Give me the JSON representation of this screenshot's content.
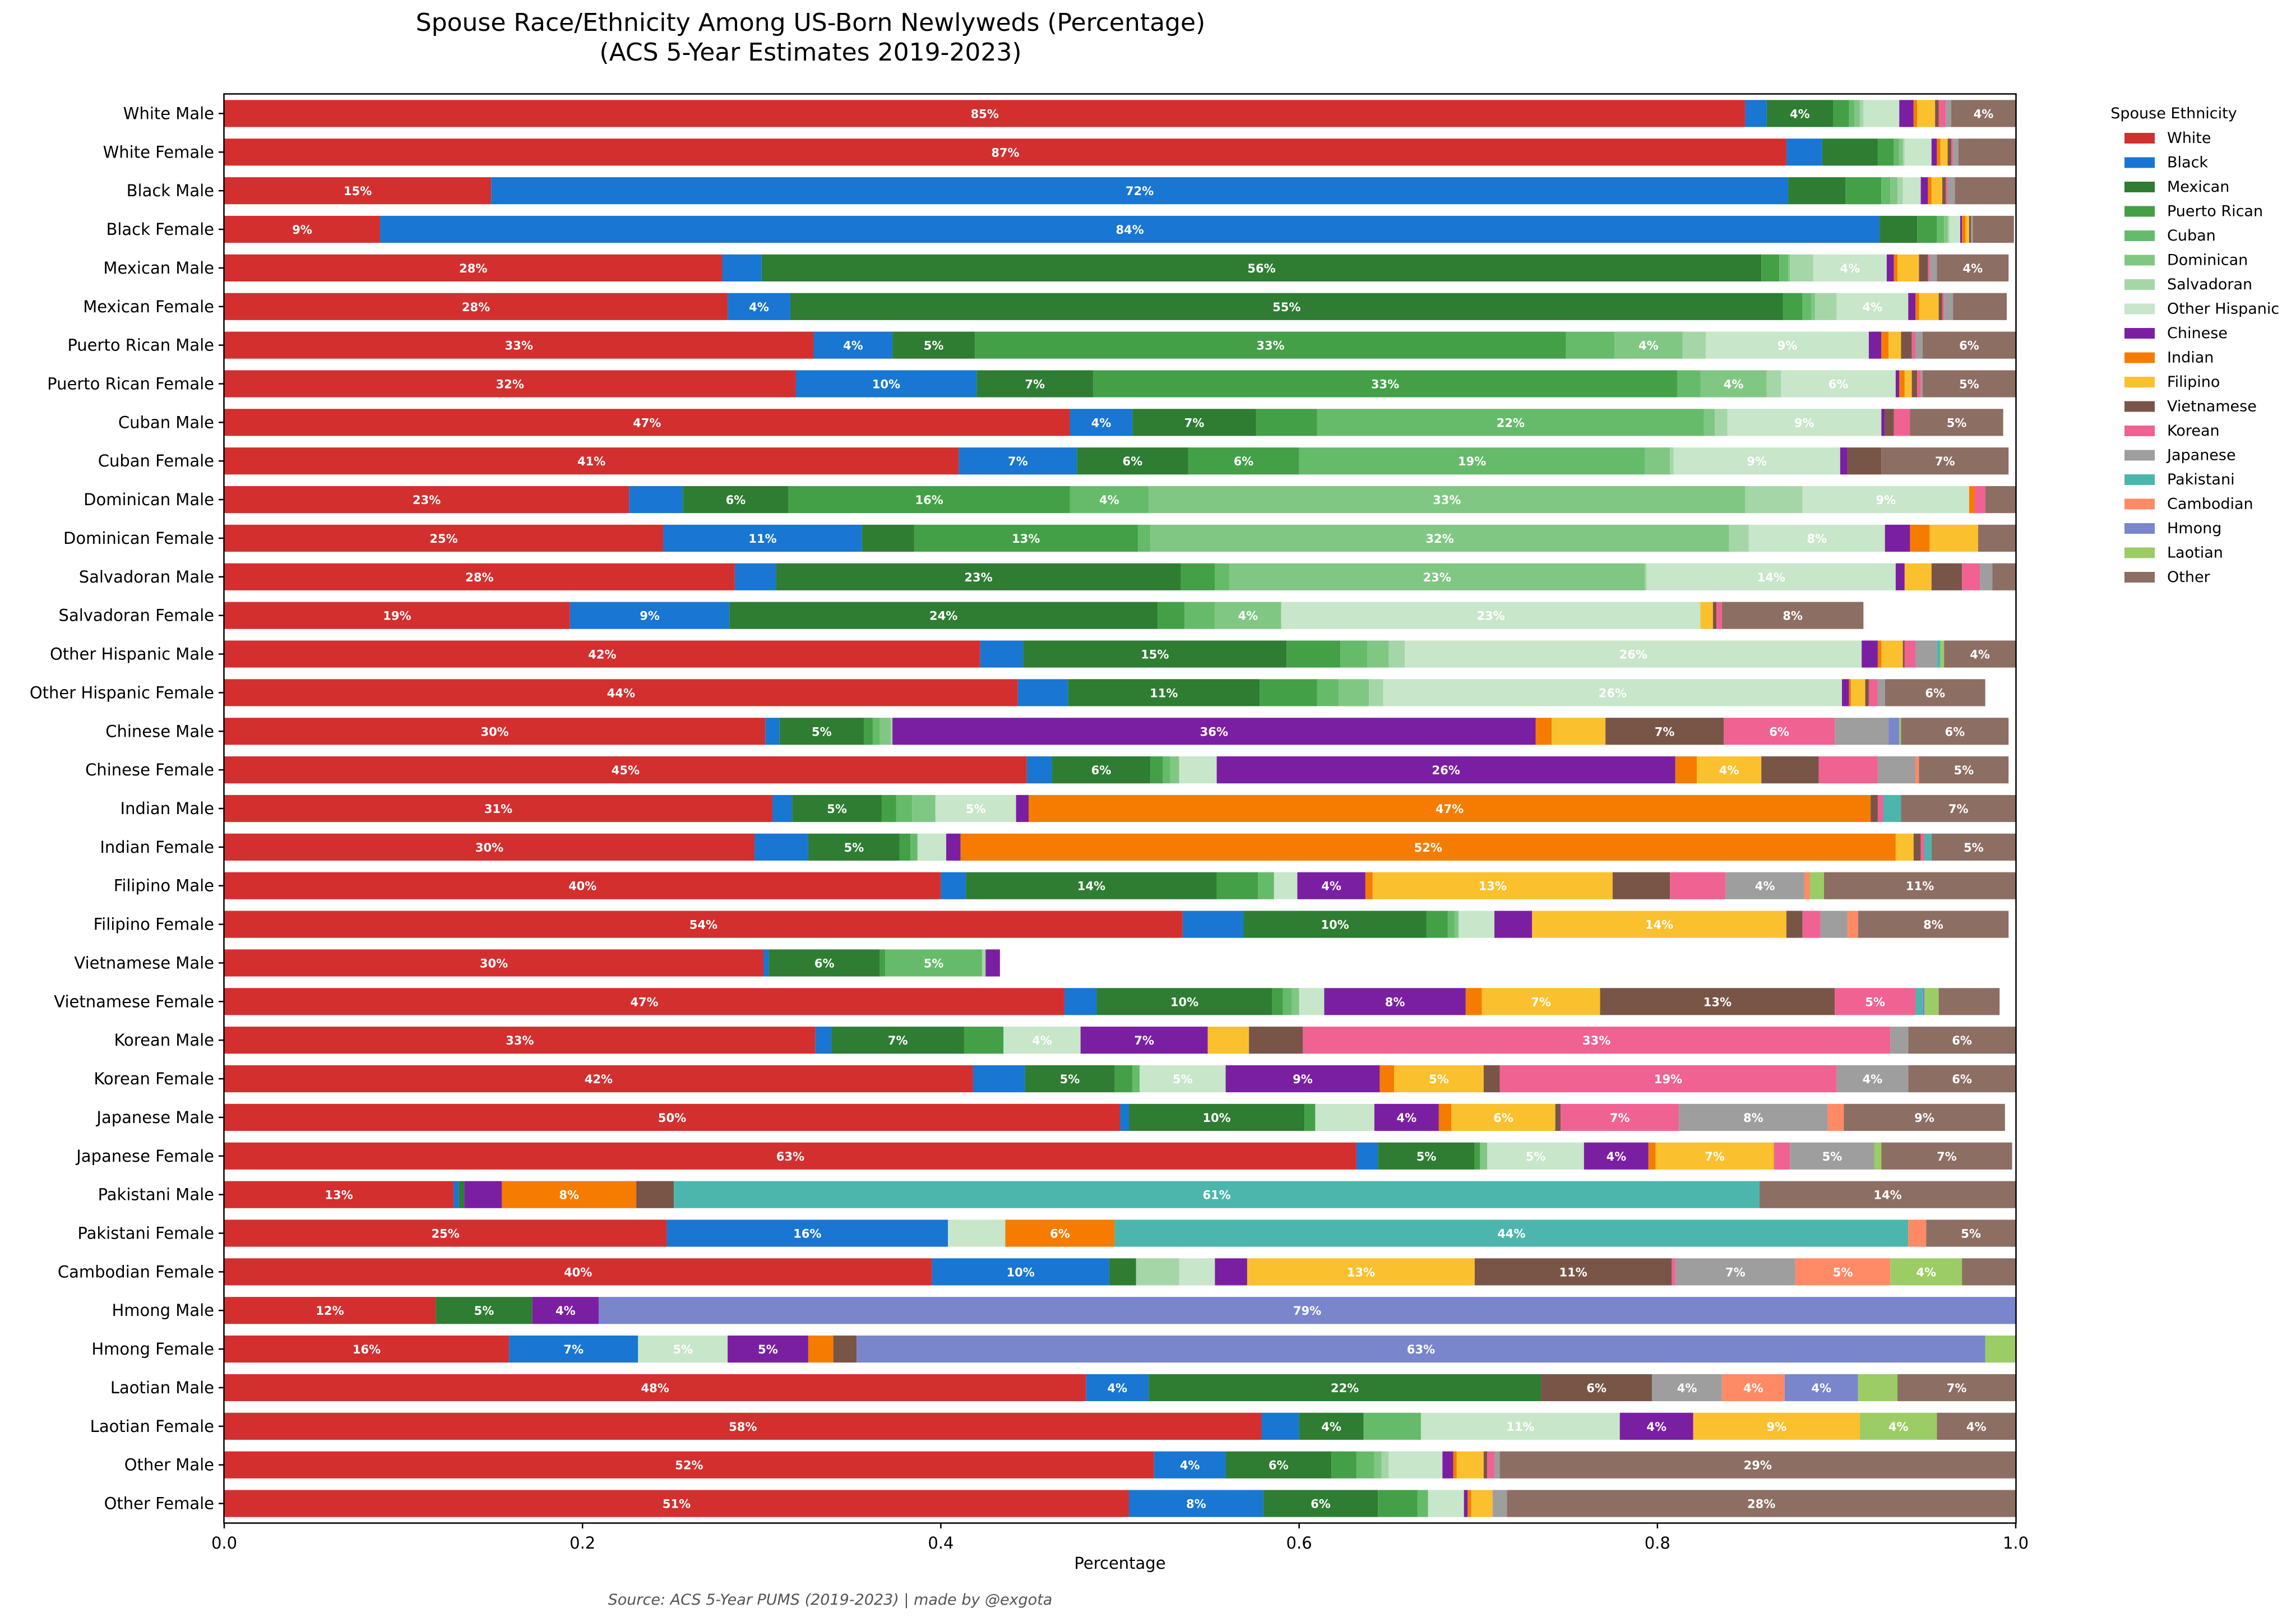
{
  "chart_data": {
    "type": "bar",
    "orientation": "horizontal",
    "stacked": true,
    "title": "Spouse Race/Ethnicity Among US-Born Newlyweds (Percentage)",
    "subtitle": "(ACS 5-Year Estimates 2019-2023)",
    "xlabel": "Percentage",
    "ylabel": "",
    "xlim": [
      0,
      1
    ],
    "xticks": [
      "0.0",
      "0.2",
      "0.4",
      "0.6",
      "0.8",
      "1.0"
    ],
    "xtick_values": [
      0,
      0.2,
      0.4,
      0.6,
      0.8,
      1.0
    ],
    "grid": false,
    "legend_title": "Spouse Ethnicity",
    "legend_position": "right",
    "label_threshold": 0.035,
    "source": "Source: ACS 5-Year PUMS (2019-2023) | made by @exgota",
    "series": [
      {
        "name": "White",
        "color": "#d32f2f"
      },
      {
        "name": "Black",
        "color": "#1976d2"
      },
      {
        "name": "Mexican",
        "color": "#2e7d32"
      },
      {
        "name": "Puerto Rican",
        "color": "#43a047"
      },
      {
        "name": "Cuban",
        "color": "#66bb6a"
      },
      {
        "name": "Dominican",
        "color": "#81c784"
      },
      {
        "name": "Salvadoran",
        "color": "#a5d6a7"
      },
      {
        "name": "Other Hispanic",
        "color": "#c8e6c9"
      },
      {
        "name": "Chinese",
        "color": "#7b1fa2"
      },
      {
        "name": "Indian",
        "color": "#f57c00"
      },
      {
        "name": "Filipino",
        "color": "#fbc02d"
      },
      {
        "name": "Vietnamese",
        "color": "#795548"
      },
      {
        "name": "Korean",
        "color": "#f06292"
      },
      {
        "name": "Japanese",
        "color": "#9e9e9e"
      },
      {
        "name": "Pakistani",
        "color": "#4db6ac"
      },
      {
        "name": "Cambodian",
        "color": "#ff8a65"
      },
      {
        "name": "Hmong",
        "color": "#7986cb"
      },
      {
        "name": "Laotian",
        "color": "#9ccc65"
      },
      {
        "name": "Other",
        "color": "#8d6e63"
      }
    ],
    "categories": [
      "White Male",
      "White Female",
      "Black Male",
      "Black Female",
      "Mexican Male",
      "Mexican Female",
      "Puerto Rican Male",
      "Puerto Rican Female",
      "Cuban Male",
      "Cuban Female",
      "Dominican Male",
      "Dominican Female",
      "Salvadoran Male",
      "Salvadoran Female",
      "Other Hispanic Male",
      "Other Hispanic Female",
      "Chinese Male",
      "Chinese Female",
      "Indian Male",
      "Indian Female",
      "Filipino Male",
      "Filipino Female",
      "Vietnamese Male",
      "Vietnamese Female",
      "Korean Male",
      "Korean Female",
      "Japanese Male",
      "Japanese Female",
      "Pakistani Male",
      "Pakistani Female",
      "Cambodian Female",
      "Hmong Male",
      "Hmong Female",
      "Laotian Male",
      "Laotian Female",
      "Other Male",
      "Other Female"
    ],
    "values": [
      [
        0.849,
        0.012,
        0.037,
        0.009,
        0.003,
        0.003,
        0.002,
        0.02,
        0.008,
        0.002,
        0.01,
        0.002,
        0.004,
        0.003,
        0.0,
        0.0,
        0.0,
        0.0,
        0.036
      ],
      [
        0.872,
        0.02,
        0.031,
        0.009,
        0.003,
        0.002,
        0.001,
        0.015,
        0.003,
        0.002,
        0.004,
        0.002,
        0.001,
        0.003,
        0.0,
        0.0,
        0.0,
        0.0,
        0.032
      ],
      [
        0.149,
        0.724,
        0.032,
        0.02,
        0.005,
        0.004,
        0.003,
        0.01,
        0.004,
        0.002,
        0.006,
        0.002,
        0.001,
        0.004,
        0.0,
        0.0,
        0.0,
        0.0,
        0.034
      ],
      [
        0.087,
        0.837,
        0.021,
        0.011,
        0.004,
        0.002,
        0.001,
        0.006,
        0.001,
        0.002,
        0.002,
        0.001,
        0.0,
        0.001,
        0.0,
        0.0,
        0.0,
        0.0,
        0.023
      ],
      [
        0.278,
        0.022,
        0.558,
        0.01,
        0.005,
        0.001,
        0.013,
        0.041,
        0.004,
        0.002,
        0.012,
        0.005,
        0.001,
        0.004,
        0.0,
        0.0,
        0.0,
        0.0,
        0.04
      ],
      [
        0.281,
        0.035,
        0.554,
        0.011,
        0.005,
        0.002,
        0.012,
        0.04,
        0.004,
        0.002,
        0.011,
        0.002,
        0.001,
        0.005,
        0.0,
        0.0,
        0.0,
        0.0,
        0.03
      ],
      [
        0.329,
        0.044,
        0.046,
        0.33,
        0.027,
        0.038,
        0.013,
        0.091,
        0.007,
        0.004,
        0.007,
        0.006,
        0.002,
        0.004,
        0.0,
        0.0,
        0.0,
        0.0,
        0.058
      ],
      [
        0.319,
        0.101,
        0.065,
        0.326,
        0.013,
        0.037,
        0.008,
        0.064,
        0.002,
        0.003,
        0.004,
        0.003,
        0.002,
        0.001,
        0.0,
        0.0,
        0.0,
        0.0,
        0.052
      ],
      [
        0.472,
        0.035,
        0.069,
        0.034,
        0.216,
        0.006,
        0.007,
        0.086,
        0.002,
        0.0,
        0.0,
        0.005,
        0.009,
        0.0,
        0.0,
        0.0,
        0.0,
        0.0,
        0.052
      ],
      [
        0.41,
        0.066,
        0.062,
        0.062,
        0.193,
        0.014,
        0.002,
        0.093,
        0.004,
        0.0,
        0.0,
        0.019,
        0.0,
        0.0,
        0.0,
        0.0,
        0.0,
        0.0,
        0.071
      ],
      [
        0.226,
        0.03,
        0.059,
        0.157,
        0.044,
        0.333,
        0.032,
        0.093,
        0.0,
        0.003,
        0.0,
        0.0,
        0.006,
        0.0,
        0.0,
        0.0,
        0.0,
        0.0,
        0.017
      ],
      [
        0.245,
        0.111,
        0.029,
        0.125,
        0.007,
        0.323,
        0.011,
        0.076,
        0.014,
        0.011,
        0.027,
        0.0,
        0.0,
        0.0,
        0.0,
        0.0,
        0.0,
        0.0,
        0.026
      ],
      [
        0.285,
        0.023,
        0.226,
        0.019,
        0.008,
        0.232,
        0.001,
        0.139,
        0.005,
        0.0,
        0.015,
        0.017,
        0.01,
        0.007,
        0.0,
        0.0,
        0.0,
        0.0,
        0.013
      ],
      [
        0.193,
        0.089,
        0.239,
        0.015,
        0.017,
        0.037,
        0.0,
        0.234,
        0.0,
        0.0,
        0.007,
        0.002,
        0.003,
        0.0,
        0.0,
        0.0,
        0.0,
        0.0,
        0.079
      ],
      [
        0.422,
        0.024,
        0.147,
        0.03,
        0.015,
        0.012,
        0.009,
        0.255,
        0.009,
        0.002,
        0.012,
        0.001,
        0.006,
        0.012,
        0.002,
        0.0,
        0.0,
        0.002,
        0.04
      ],
      [
        0.443,
        0.028,
        0.107,
        0.032,
        0.012,
        0.017,
        0.008,
        0.256,
        0.004,
        0.001,
        0.008,
        0.002,
        0.005,
        0.004,
        0.0,
        0.0,
        0.0,
        0.0,
        0.056
      ],
      [
        0.302,
        0.008,
        0.047,
        0.005,
        0.004,
        0.006,
        0.001,
        0.0,
        0.359,
        0.009,
        0.03,
        0.066,
        0.062,
        0.03,
        0.0,
        0.0,
        0.006,
        0.001,
        0.06
      ],
      [
        0.448,
        0.014,
        0.055,
        0.007,
        0.004,
        0.005,
        0.0,
        0.021,
        0.256,
        0.012,
        0.036,
        0.032,
        0.033,
        0.021,
        0.0,
        0.002,
        0.0,
        0.0,
        0.05
      ],
      [
        0.306,
        0.011,
        0.05,
        0.008,
        0.009,
        0.013,
        0.0,
        0.045,
        0.007,
        0.47,
        0.0,
        0.004,
        0.003,
        0.0,
        0.01,
        0.0,
        0.0,
        0.0,
        0.074
      ],
      [
        0.296,
        0.03,
        0.051,
        0.006,
        0.004,
        0.0,
        0.0,
        0.016,
        0.008,
        0.522,
        0.01,
        0.004,
        0.002,
        0.0,
        0.004,
        0.0,
        0.0,
        0.0,
        0.05
      ],
      [
        0.4,
        0.014,
        0.14,
        0.023,
        0.009,
        0.0,
        0.0,
        0.013,
        0.038,
        0.004,
        0.134,
        0.032,
        0.031,
        0.044,
        0.0,
        0.003,
        0.0,
        0.008,
        0.107
      ],
      [
        0.535,
        0.034,
        0.102,
        0.012,
        0.004,
        0.002,
        0.0,
        0.02,
        0.021,
        0.0,
        0.142,
        0.009,
        0.01,
        0.015,
        0.0,
        0.006,
        0.0,
        0.0,
        0.084
      ],
      [
        0.301,
        0.003,
        0.062,
        0.003,
        0.054,
        0.0,
        0.002,
        0.0,
        0.008,
        0.0,
        0.0,
        0.0,
        0.0,
        0.0,
        0.0,
        0.0,
        0.0,
        0.0,
        0.0
      ],
      [
        0.469,
        0.018,
        0.098,
        0.006,
        0.005,
        0.004,
        0.0,
        0.014,
        0.079,
        0.009,
        0.066,
        0.131,
        0.045,
        0.0,
        0.004,
        0.0,
        0.001,
        0.008,
        0.034
      ],
      [
        0.33,
        0.009,
        0.074,
        0.022,
        0.0,
        0.0,
        0.0,
        0.043,
        0.071,
        0.0,
        0.023,
        0.03,
        0.328,
        0.01,
        0.0,
        0.0,
        0.0,
        0.0,
        0.06
      ],
      [
        0.418,
        0.029,
        0.05,
        0.01,
        0.004,
        0.0,
        0.0,
        0.048,
        0.086,
        0.008,
        0.05,
        0.009,
        0.188,
        0.04,
        0.0,
        0.0,
        0.0,
        0.0,
        0.06
      ],
      [
        0.5,
        0.005,
        0.098,
        0.006,
        0.0,
        0.0,
        0.0,
        0.033,
        0.036,
        0.007,
        0.058,
        0.003,
        0.066,
        0.083,
        0.0,
        0.009,
        0.0,
        0.0,
        0.09
      ],
      [
        0.632,
        0.012,
        0.054,
        0.003,
        0.0,
        0.004,
        0.0,
        0.054,
        0.036,
        0.004,
        0.066,
        0.0,
        0.009,
        0.047,
        0.0,
        0.0,
        0.0,
        0.004,
        0.073
      ],
      [
        0.128,
        0.003,
        0.003,
        0.0,
        0.0,
        0.0,
        0.0,
        0.0,
        0.021,
        0.075,
        0.0,
        0.021,
        0.0,
        0.0,
        0.606,
        0.0,
        0.0,
        0.0,
        0.143
      ],
      [
        0.247,
        0.157,
        0.0,
        0.0,
        0.0,
        0.0,
        0.0,
        0.032,
        0.0,
        0.061,
        0.0,
        0.0,
        0.0,
        0.0,
        0.443,
        0.01,
        0.0,
        0.0,
        0.05
      ],
      [
        0.395,
        0.099,
        0.015,
        0.0,
        0.0,
        0.0,
        0.024,
        0.02,
        0.018,
        0.0,
        0.127,
        0.11,
        0.002,
        0.067,
        0.0,
        0.053,
        0.0,
        0.04,
        0.03
      ],
      [
        0.118,
        0.0,
        0.054,
        0.0,
        0.0,
        0.0,
        0.0,
        0.0,
        0.037,
        0.0,
        0.0,
        0.0,
        0.0,
        0.0,
        0.0,
        0.0,
        0.791,
        0.0,
        0.0
      ],
      [
        0.159,
        0.072,
        0.0,
        0.0,
        0.0,
        0.0,
        0.0,
        0.05,
        0.045,
        0.014,
        0.0,
        0.013,
        0.0,
        0.0,
        0.0,
        0.0,
        0.63,
        0.017,
        0.0
      ],
      [
        0.481,
        0.035,
        0.219,
        0.0,
        0.0,
        0.0,
        0.0,
        0.0,
        0.0,
        0.0,
        0.0,
        0.062,
        0.0,
        0.039,
        0.0,
        0.035,
        0.041,
        0.022,
        0.066
      ],
      [
        0.579,
        0.021,
        0.036,
        0.0,
        0.032,
        0.0,
        0.0,
        0.111,
        0.041,
        0.0,
        0.093,
        0.0,
        0.0,
        0.0,
        0.0,
        0.0,
        0.0,
        0.043,
        0.044
      ],
      [
        0.519,
        0.04,
        0.059,
        0.014,
        0.01,
        0.004,
        0.004,
        0.03,
        0.006,
        0.002,
        0.015,
        0.002,
        0.004,
        0.003,
        0.0,
        0.0,
        0.0,
        0.0,
        0.288
      ],
      [
        0.505,
        0.075,
        0.064,
        0.022,
        0.006,
        0.0,
        0.0,
        0.02,
        0.002,
        0.002,
        0.012,
        0.0,
        0.0,
        0.008,
        0.0,
        0.0,
        0.0,
        0.0,
        0.284
      ]
    ]
  }
}
